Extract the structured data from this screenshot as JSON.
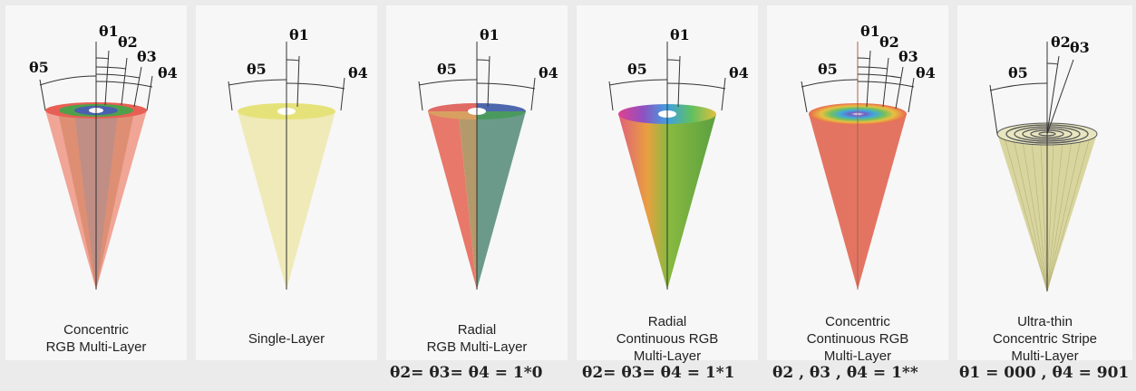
{
  "panels": [
    {
      "caption": [
        "Concentric",
        "RGB Multi-Layer"
      ],
      "angles": [
        "θ1",
        "θ2",
        "θ3",
        "θ4",
        "θ5"
      ]
    },
    {
      "caption": [
        "Single-Layer"
      ],
      "angles": [
        "θ1",
        "θ4",
        "θ5"
      ]
    },
    {
      "caption": [
        "Radial",
        "RGB Multi-Layer"
      ],
      "angles": [
        "θ1",
        "θ4",
        "θ5"
      ]
    },
    {
      "caption": [
        "Radial",
        "Continuous RGB",
        "Multi-Layer"
      ],
      "angles": [
        "θ1",
        "θ4",
        "θ5"
      ]
    },
    {
      "caption": [
        "Concentric",
        "Continuous RGB",
        "Multi-Layer"
      ],
      "angles": [
        "θ1",
        "θ2",
        "θ3",
        "θ4",
        "θ5"
      ]
    },
    {
      "caption": [
        "Ultra-thin",
        "Concentric Stripe",
        "Multi-Layer"
      ],
      "angles": [
        "θ2",
        "θ3",
        "θ5"
      ]
    }
  ],
  "formulas": [
    "θ2= θ3= θ4 = 1*0",
    "θ2= θ3= θ4 = 1*1",
    "θ2 , θ3 , θ4 = 1**",
    "θ1 = 000 , θ4 = 901"
  ],
  "colors": {
    "red": "#e87c6e",
    "green": "#5aa24a",
    "blue": "#5b6fb8",
    "yellow": "#e9e59a",
    "teal": "#6e9c8a",
    "stripe": "#d9d8a3"
  }
}
